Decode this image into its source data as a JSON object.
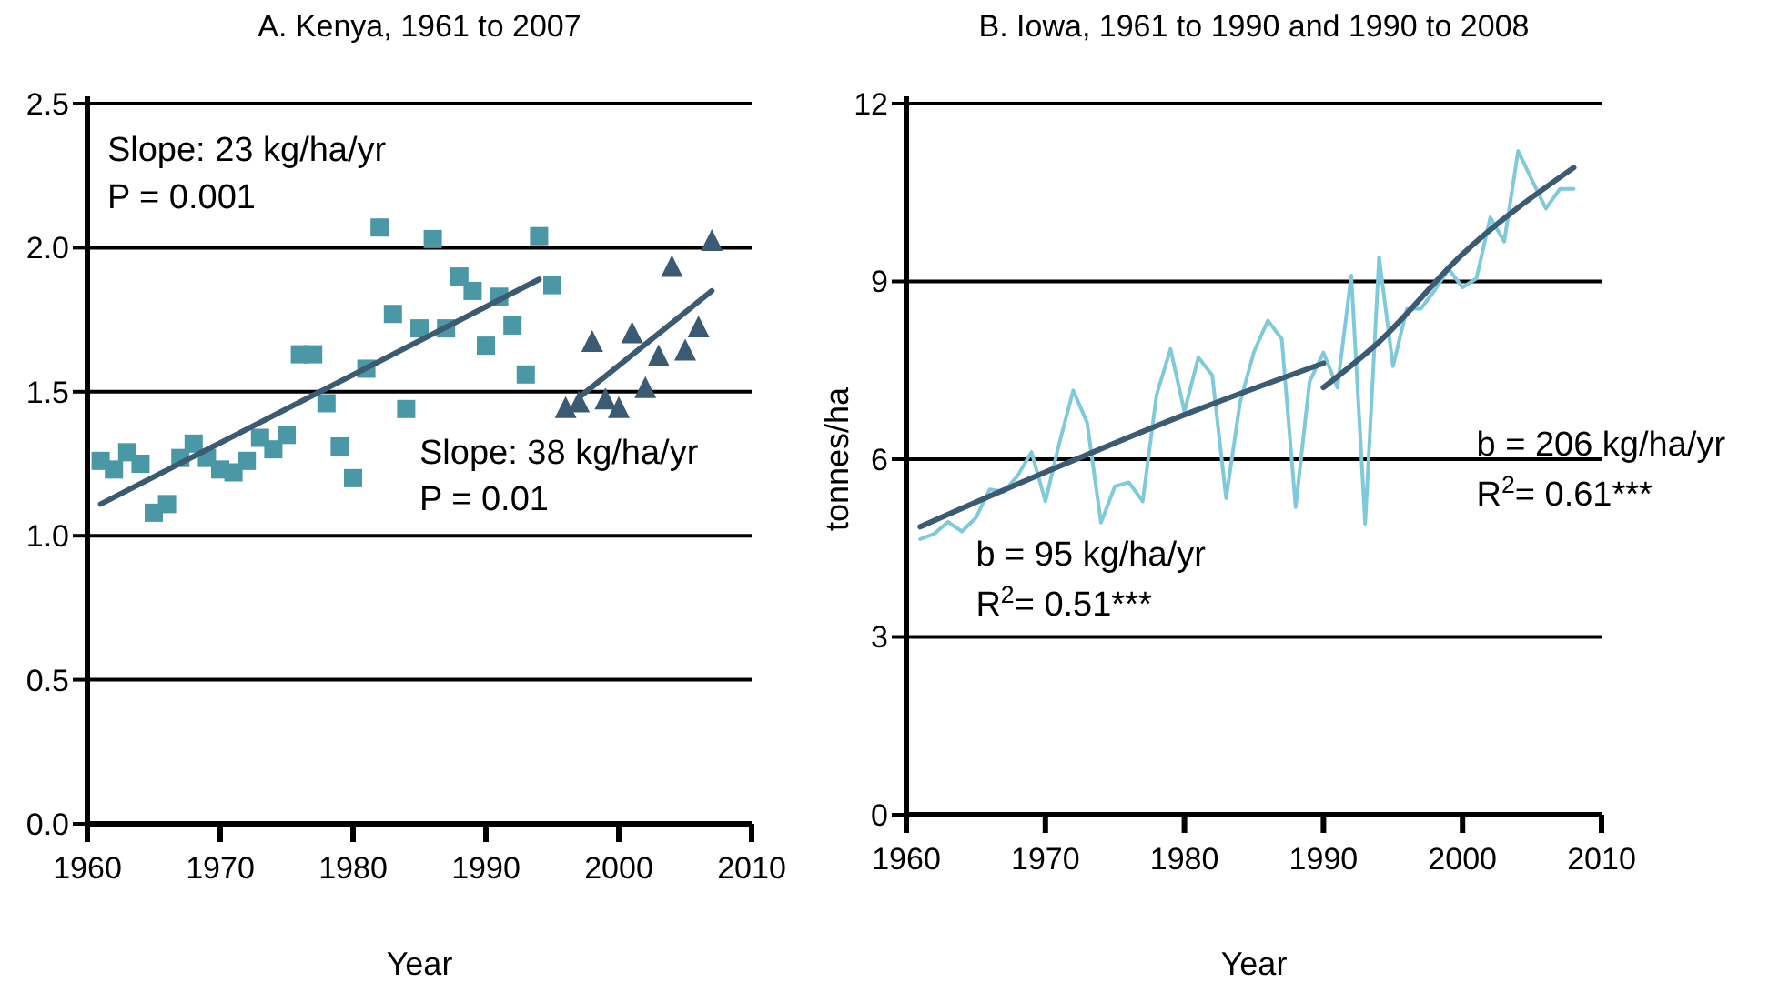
{
  "chart_data": [
    {
      "type": "scatter",
      "title": "A. Kenya, 1961 to 2007",
      "xlabel": "Year",
      "xlim": [
        1960,
        2010
      ],
      "xticks": [
        1960,
        1970,
        1980,
        1990,
        2000,
        2010
      ],
      "ylim": [
        0,
        2.5
      ],
      "yticks": [
        {
          "value": 0,
          "label": "0.0"
        },
        {
          "value": 0.5,
          "label": "0.5"
        },
        {
          "value": 1,
          "label": "1.0"
        },
        {
          "value": 1.5,
          "label": "1.5"
        },
        {
          "value": 2,
          "label": "2.0"
        },
        {
          "value": 2.5,
          "label": "2.5"
        }
      ],
      "grid": "y",
      "annotations": [
        "Slope: 23 kg/ha/yr",
        "P = 0.001",
        "Slope: 38 kg/ha/yr",
        "P = 0.01"
      ],
      "series": [
        {
          "marker": "square",
          "color": "#4a97a5",
          "x": [
            1961,
            1962,
            1963,
            1964,
            1965,
            1966,
            1967,
            1968,
            1969,
            1970,
            1971,
            1972,
            1973,
            1974,
            1975,
            1976,
            1977,
            1978,
            1979,
            1980,
            1981,
            1982,
            1983,
            1984,
            1985,
            1986,
            1987,
            1988,
            1989,
            1990,
            1991,
            1992,
            1993,
            1994,
            1995
          ],
          "values": [
            1.26,
            1.23,
            1.29,
            1.25,
            1.08,
            1.11,
            1.27,
            1.32,
            1.27,
            1.23,
            1.22,
            1.26,
            1.34,
            1.3,
            1.35,
            1.63,
            1.63,
            1.46,
            1.31,
            1.2,
            1.58,
            2.07,
            1.77,
            1.44,
            1.72,
            2.03,
            1.72,
            1.9,
            1.85,
            1.66,
            1.83,
            1.73,
            1.56,
            2.04,
            1.87
          ]
        },
        {
          "marker": "triangle",
          "color": "#3b5a74",
          "x": [
            1996,
            1997,
            1998,
            1999,
            2000,
            2001,
            2002,
            2003,
            2004,
            2005,
            2006,
            2007
          ],
          "values": [
            1.44,
            1.46,
            1.67,
            1.47,
            1.44,
            1.7,
            1.51,
            1.62,
            1.93,
            1.64,
            1.72,
            2.02
          ]
        },
        {
          "type": "line",
          "color": "#3b5a74",
          "x": [
            1961,
            1994
          ],
          "values": [
            1.11,
            1.89
          ]
        },
        {
          "type": "line",
          "color": "#3b5a74",
          "x": [
            1997,
            2007
          ],
          "values": [
            1.48,
            1.85
          ]
        }
      ]
    },
    {
      "type": "line",
      "title": "B. Iowa, 1961 to 1990 and 1990 to 2008",
      "xlabel": "Year",
      "ylabel": "tonnes/ha",
      "xlim": [
        1960,
        2010
      ],
      "xticks": [
        1960,
        1970,
        1980,
        1990,
        2000,
        2010
      ],
      "ylim": [
        0,
        12
      ],
      "yticks": [
        0,
        3,
        6,
        9,
        12
      ],
      "grid": "y",
      "annotations": [
        "b = 95 kg/ha/yr",
        "R$^{2}$= 0.51***",
        "b = 206 kg/ha/yr",
        "R$^{2}$= 0.61***"
      ],
      "series": [
        {
          "color": "#7ecadb",
          "x": [
            1961,
            1962,
            1963,
            1964,
            1965,
            1966,
            1967,
            1968,
            1969,
            1970,
            1971,
            1972,
            1973,
            1974,
            1975,
            1976,
            1977,
            1978,
            1979,
            1980,
            1981,
            1982,
            1983,
            1984,
            1985,
            1986,
            1987,
            1988,
            1989,
            1990,
            1991,
            1992,
            1993,
            1994,
            1995,
            1996,
            1997,
            1998,
            1999,
            2000,
            2001,
            2002,
            2003,
            2004,
            2005,
            2006,
            2007,
            2008
          ],
          "values": [
            4.65,
            4.74,
            4.94,
            4.78,
            5.01,
            5.49,
            5.45,
            5.72,
            6.12,
            5.29,
            6.27,
            7.16,
            6.62,
            4.93,
            5.54,
            5.61,
            5.29,
            7.09,
            7.86,
            6.8,
            7.72,
            7.42,
            5.34,
            6.96,
            7.81,
            8.34,
            8.03,
            5.19,
            7.31,
            7.8,
            7.21,
            9.1,
            4.91,
            9.41,
            7.57,
            8.54,
            8.54,
            8.85,
            9.21,
            8.9,
            9.05,
            10.08,
            9.67,
            11.2,
            10.71,
            10.23,
            10.56,
            10.56
          ]
        },
        {
          "type": "line",
          "color": "#3b5a74",
          "x": [
            1961,
            1970,
            1980,
            1990
          ],
          "values": [
            4.86,
            5.78,
            6.75,
            7.62
          ]
        },
        {
          "type": "line",
          "color": "#3b5a74",
          "x": [
            1990,
            1994,
            2000,
            2008
          ],
          "values": [
            7.21,
            7.98,
            9.46,
            10.92
          ]
        }
      ]
    }
  ]
}
